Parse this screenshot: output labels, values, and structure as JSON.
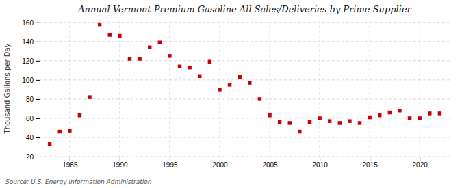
{
  "chart_data": {
    "type": "scatter",
    "title": "Annual Vermont Premium Gasoline All Sales/Deliveries by Prime Supplier",
    "y_label": "Thousand Gallons per Day",
    "source": "Source: U.S. Energy Information Administration",
    "x": [
      1983,
      1984,
      1985,
      1986,
      1987,
      1988,
      1989,
      1990,
      1991,
      1992,
      1993,
      1994,
      1995,
      1996,
      1997,
      1998,
      1999,
      2000,
      2001,
      2002,
      2003,
      2004,
      2005,
      2006,
      2007,
      2008,
      2009,
      2010,
      2011,
      2012,
      2013,
      2014,
      2015,
      2016,
      2017,
      2018,
      2019,
      2020,
      2021,
      2022
    ],
    "values": [
      33,
      46,
      47,
      63,
      82,
      158,
      147,
      146,
      122,
      122,
      134,
      139,
      125,
      114,
      113,
      104,
      119,
      90,
      95,
      103,
      97,
      80,
      63,
      56,
      55,
      46,
      56,
      60,
      57,
      55,
      57,
      55,
      61,
      63,
      66,
      68,
      60,
      60,
      65,
      65
    ],
    "color": "#cc0000",
    "marker": "square",
    "xlim": [
      1982,
      2023
    ],
    "ylim": [
      20,
      162
    ],
    "xticks": [
      1985,
      1990,
      1995,
      2000,
      2005,
      2010,
      2015,
      2020
    ],
    "yticks": [
      20,
      40,
      60,
      80,
      100,
      120,
      140,
      160
    ],
    "grid": true
  }
}
